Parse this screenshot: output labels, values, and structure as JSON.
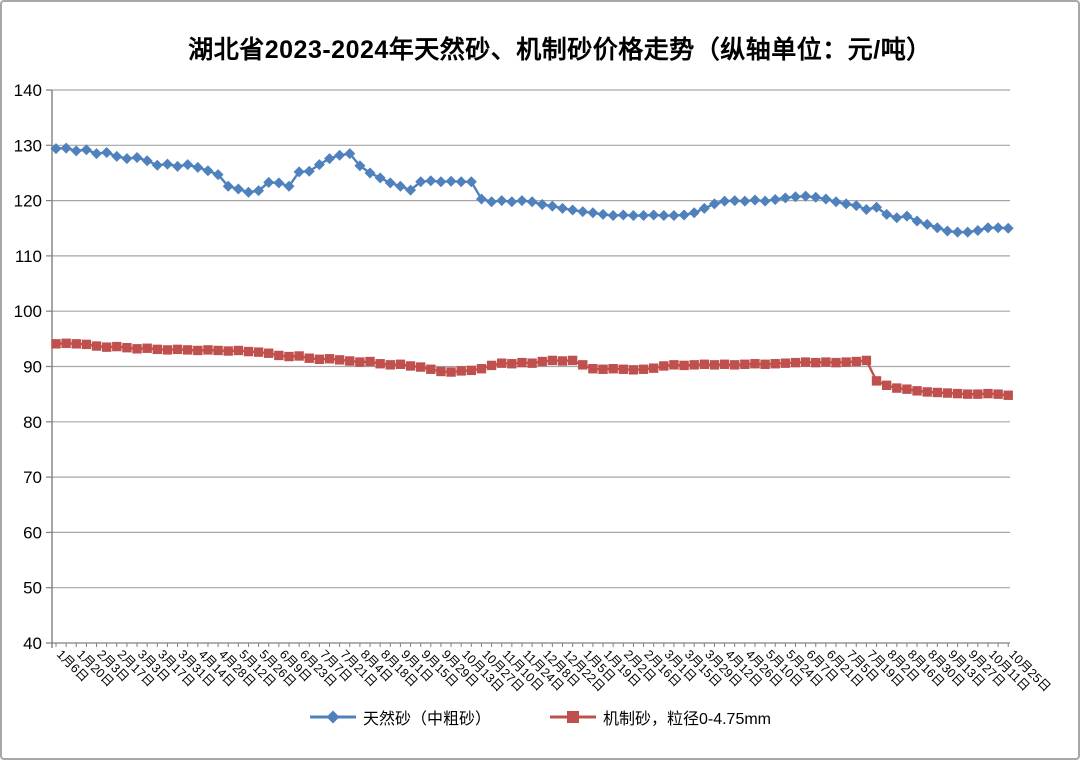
{
  "title": "湖北省2023-2024年天然砂、机制砂价格走势（纵轴单位：元/吨）",
  "colors": {
    "natural_sand": "#4F81BD",
    "machine_sand": "#C0504D",
    "gridline": "#A6A6A6",
    "axis": "#808080",
    "text": "#000000"
  },
  "chart_data": {
    "type": "line",
    "ylim": [
      40,
      140
    ],
    "y_ticks": [
      40,
      50,
      60,
      70,
      80,
      90,
      100,
      110,
      120,
      130,
      140
    ],
    "grid": "horizontal",
    "legend_position": "bottom",
    "label_every": 2,
    "x_labels": [
      "1月6日",
      "1月20日",
      "2月3日",
      "2月17日",
      "3月3日",
      "3月17日",
      "3月31日",
      "4月14日",
      "4月28日",
      "5月12日",
      "5月26日",
      "6月9日",
      "6月23日",
      "7月7日",
      "7月21日",
      "8月4日",
      "8月18日",
      "9月1日",
      "9月15日",
      "9月29日",
      "10月13日",
      "10月27日",
      "11月10日",
      "11月24日",
      "12月8日",
      "12月22日",
      "1月5日",
      "1月19日",
      "2月2日",
      "2月16日",
      "3月1日",
      "3月15日",
      "3月29日",
      "4月12日",
      "4月26日",
      "5月10日",
      "5月24日",
      "6月7日",
      "6月21日",
      "7月5日",
      "7月19日",
      "8月2日",
      "8月16日",
      "8月30日",
      "9月13日",
      "9月27日",
      "10月11日",
      "10月25日"
    ],
    "series": [
      {
        "name": "天然砂（中粗砂）",
        "color": "#4F81BD",
        "marker": "diamond",
        "values": [
          129.4,
          129.5,
          129.0,
          129.2,
          128.5,
          128.7,
          128.0,
          127.6,
          127.8,
          127.2,
          126.4,
          126.6,
          126.2,
          126.5,
          126.0,
          125.4,
          124.7,
          122.6,
          122.1,
          121.5,
          121.8,
          123.3,
          123.2,
          122.6,
          125.2,
          125.3,
          126.5,
          127.6,
          128.2,
          128.5,
          126.3,
          125.0,
          124.1,
          123.2,
          122.6,
          121.9,
          123.4,
          123.6,
          123.4,
          123.5,
          123.4,
          123.4,
          120.3,
          119.8,
          120.0,
          119.8,
          120.0,
          119.8,
          119.3,
          119.0,
          118.6,
          118.3,
          118.0,
          117.8,
          117.5,
          117.3,
          117.4,
          117.3,
          117.3,
          117.4,
          117.3,
          117.3,
          117.4,
          117.8,
          118.6,
          119.4,
          119.9,
          120.0,
          119.9,
          120.1,
          119.9,
          120.2,
          120.5,
          120.7,
          120.8,
          120.6,
          120.3,
          119.8,
          119.4,
          119.1,
          118.4,
          118.8,
          117.5,
          116.9,
          117.2,
          116.3,
          115.7,
          115.1,
          114.5,
          114.3,
          114.3,
          114.6,
          115.1,
          115.1,
          115.0
        ]
      },
      {
        "name": "机制砂，粒径0-4.75mm",
        "color": "#C0504D",
        "marker": "square",
        "values": [
          94.1,
          94.2,
          94.1,
          94.0,
          93.7,
          93.5,
          93.6,
          93.4,
          93.2,
          93.3,
          93.1,
          93.0,
          93.1,
          93.0,
          92.9,
          93.0,
          92.9,
          92.8,
          92.9,
          92.7,
          92.6,
          92.4,
          92.0,
          91.8,
          91.9,
          91.5,
          91.3,
          91.4,
          91.2,
          91.0,
          90.8,
          90.9,
          90.5,
          90.3,
          90.4,
          90.1,
          89.9,
          89.5,
          89.1,
          89.0,
          89.2,
          89.3,
          89.6,
          90.2,
          90.6,
          90.5,
          90.7,
          90.6,
          90.9,
          91.1,
          91.0,
          91.1,
          90.3,
          89.6,
          89.5,
          89.6,
          89.5,
          89.4,
          89.5,
          89.7,
          90.1,
          90.3,
          90.2,
          90.3,
          90.4,
          90.3,
          90.4,
          90.3,
          90.4,
          90.5,
          90.4,
          90.5,
          90.6,
          90.7,
          90.8,
          90.7,
          90.8,
          90.7,
          90.8,
          90.9,
          91.1,
          87.4,
          86.6,
          86.1,
          85.9,
          85.6,
          85.4,
          85.3,
          85.2,
          85.1,
          85.0,
          85.0,
          85.1,
          85.0,
          84.8
        ]
      }
    ]
  }
}
